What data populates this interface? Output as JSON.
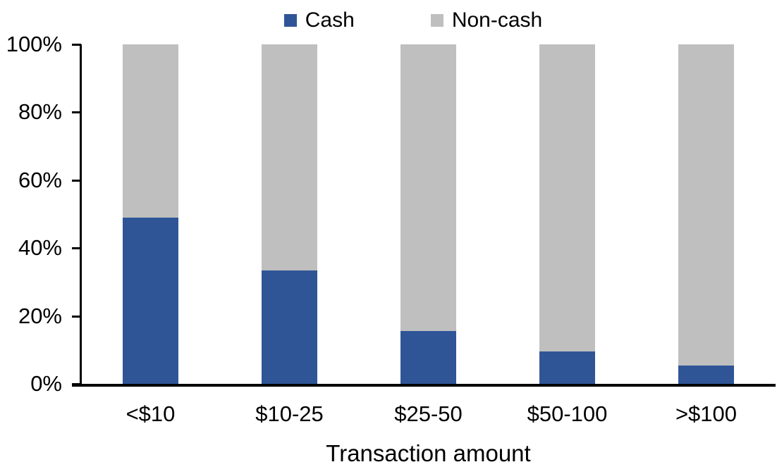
{
  "chart_data": {
    "type": "bar",
    "stacked": true,
    "title": "",
    "xlabel": "Transaction amount",
    "ylabel": "",
    "categories": [
      "<$10",
      "$10-25",
      "$25-50",
      "$50-100",
      ">$100"
    ],
    "series": [
      {
        "name": "Cash",
        "color": "#2F5597",
        "values": [
          49,
          33.5,
          15.5,
          9.5,
          5.5
        ]
      },
      {
        "name": "Non-cash",
        "color": "#BFBFBF",
        "values": [
          51,
          66.5,
          84.5,
          90.5,
          94.5
        ]
      }
    ],
    "ylim": [
      0,
      100
    ],
    "yticks": [
      "0%",
      "20%",
      "40%",
      "60%",
      "80%",
      "100%"
    ],
    "grid": false,
    "legend_position": "top",
    "axis_color": "#000000",
    "background_color": "#FFFFFF"
  }
}
